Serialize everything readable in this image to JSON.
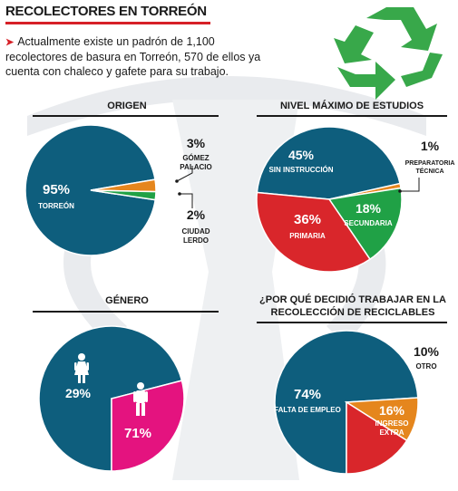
{
  "header": {
    "title": "RECOLECTORES EN TORREÓN",
    "intro": "Actualmente existe un padrón de 1,100 recolectores de basura en Torreón, 570 de ellos ya cuenta con chaleco y gafete para su trabajo."
  },
  "colors": {
    "blue": "#0e5e7d",
    "orange": "#e5861d",
    "green": "#20a146",
    "red": "#d9262b",
    "magenta": "#e4137f",
    "accent_red": "#d62027",
    "recycle_green": "#38a84a",
    "watermark": "#e9ebee"
  },
  "icons": [
    "recycle-icon",
    "female-icon",
    "male-icon"
  ],
  "chart_data": [
    {
      "type": "pie",
      "title": "ORIGEN",
      "slices": [
        {
          "label": "TORREÓN",
          "value": 95,
          "pct_text": "95%",
          "color": "#0e5e7d"
        },
        {
          "label": "GÓMEZ PALACIO",
          "value": 3,
          "pct_text": "3%",
          "color": "#e5861d"
        },
        {
          "label": "CIUDAD LERDO",
          "value": 2,
          "pct_text": "2%",
          "color": "#20a146"
        }
      ]
    },
    {
      "type": "pie",
      "title": "NIVEL MÁXIMO DE ESTUDIOS",
      "slices": [
        {
          "label": "SIN INSTRUCCIÓN",
          "value": 45,
          "pct_text": "45%",
          "color": "#0e5e7d"
        },
        {
          "label": "PREPARATORIA TÉCNICA",
          "value": 1,
          "pct_text": "1%",
          "color": "#e5861d"
        },
        {
          "label": "SECUNDARIA",
          "value": 18,
          "pct_text": "18%",
          "color": "#20a146"
        },
        {
          "label": "PRIMARIA",
          "value": 36,
          "pct_text": "36%",
          "color": "#d9262b"
        }
      ]
    },
    {
      "type": "pie",
      "title": "GÉNERO",
      "slices": [
        {
          "label": "",
          "value": 71,
          "pct_text": "71%",
          "color": "#0e5e7d",
          "icon": "male-icon"
        },
        {
          "label": "",
          "value": 29,
          "pct_text": "29%",
          "color": "#e4137f",
          "icon": "female-icon"
        }
      ]
    },
    {
      "type": "pie",
      "title": "¿POR QUÉ DECIDIÓ TRABAJAR EN LA RECOLECCIÓN DE RECICLABLES",
      "slices": [
        {
          "label": "FALTA DE EMPLEO",
          "value": 74,
          "pct_text": "74%",
          "color": "#0e5e7d"
        },
        {
          "label": "OTRO",
          "value": 10,
          "pct_text": "10%",
          "color": "#e5861d"
        },
        {
          "label": "INGRESO EXTRA",
          "value": 16,
          "pct_text": "16%",
          "color": "#d9262b"
        }
      ]
    }
  ]
}
